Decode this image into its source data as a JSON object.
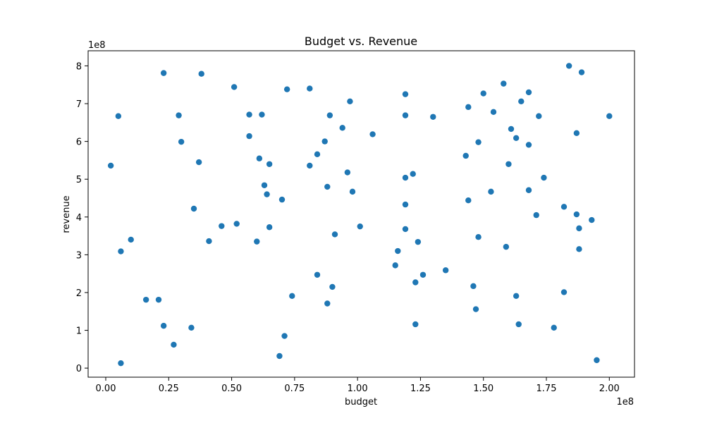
{
  "chart_data": {
    "type": "scatter",
    "title": "Budget vs. Revenue",
    "xlabel": "budget",
    "ylabel": "revenue",
    "x_offset_label": "1e8",
    "y_offset_label": "1e8",
    "xlim": [
      -0.07,
      2.1
    ],
    "ylim": [
      -0.24,
      8.4
    ],
    "x_ticks": [
      0,
      0.25,
      0.5,
      0.75,
      1.0,
      1.25,
      1.5,
      1.75,
      2.0
    ],
    "x_tick_labels": [
      "0.00",
      "0.25",
      "0.50",
      "0.75",
      "1.00",
      "1.25",
      "1.50",
      "1.75",
      "2.00"
    ],
    "y_ticks": [
      0,
      1,
      2,
      3,
      4,
      5,
      6,
      7,
      8
    ],
    "y_tick_labels": [
      "0",
      "1",
      "2",
      "3",
      "4",
      "5",
      "6",
      "7",
      "8"
    ],
    "grid": false,
    "point_color": "#1f77b4",
    "points": [
      [
        0.02,
        5.36
      ],
      [
        0.05,
        6.67
      ],
      [
        0.06,
        3.09
      ],
      [
        0.06,
        0.13
      ],
      [
        0.1,
        3.4
      ],
      [
        0.16,
        1.81
      ],
      [
        0.21,
        1.81
      ],
      [
        0.23,
        7.81
      ],
      [
        0.23,
        1.12
      ],
      [
        0.27,
        0.62
      ],
      [
        0.29,
        6.69
      ],
      [
        0.3,
        5.99
      ],
      [
        0.34,
        1.07
      ],
      [
        0.35,
        4.22
      ],
      [
        0.37,
        5.45
      ],
      [
        0.38,
        7.79
      ],
      [
        0.41,
        3.36
      ],
      [
        0.46,
        3.76
      ],
      [
        0.51,
        7.44
      ],
      [
        0.52,
        3.82
      ],
      [
        0.57,
        6.71
      ],
      [
        0.57,
        6.14
      ],
      [
        0.6,
        3.35
      ],
      [
        0.61,
        5.55
      ],
      [
        0.62,
        6.71
      ],
      [
        0.63,
        4.84
      ],
      [
        0.64,
        4.6
      ],
      [
        0.65,
        5.4
      ],
      [
        0.65,
        3.73
      ],
      [
        0.69,
        0.32
      ],
      [
        0.7,
        4.46
      ],
      [
        0.71,
        0.85
      ],
      [
        0.72,
        7.38
      ],
      [
        0.74,
        1.91
      ],
      [
        0.81,
        7.4
      ],
      [
        0.81,
        5.36
      ],
      [
        0.84,
        2.47
      ],
      [
        0.84,
        5.66
      ],
      [
        0.87,
        6.0
      ],
      [
        0.88,
        4.8
      ],
      [
        0.88,
        1.71
      ],
      [
        0.89,
        6.69
      ],
      [
        0.9,
        2.15
      ],
      [
        0.91,
        3.54
      ],
      [
        0.94,
        6.36
      ],
      [
        0.96,
        5.18
      ],
      [
        0.97,
        7.06
      ],
      [
        0.98,
        4.67
      ],
      [
        1.01,
        3.75
      ],
      [
        1.06,
        6.19
      ],
      [
        1.15,
        2.72
      ],
      [
        1.16,
        3.1
      ],
      [
        1.19,
        7.25
      ],
      [
        1.19,
        6.69
      ],
      [
        1.19,
        5.04
      ],
      [
        1.19,
        4.33
      ],
      [
        1.19,
        3.68
      ],
      [
        1.22,
        5.14
      ],
      [
        1.23,
        2.27
      ],
      [
        1.23,
        1.16
      ],
      [
        1.24,
        3.34
      ],
      [
        1.26,
        2.47
      ],
      [
        1.3,
        6.65
      ],
      [
        1.35,
        2.59
      ],
      [
        1.43,
        5.62
      ],
      [
        1.44,
        6.91
      ],
      [
        1.44,
        4.44
      ],
      [
        1.46,
        2.17
      ],
      [
        1.47,
        1.56
      ],
      [
        1.48,
        5.98
      ],
      [
        1.48,
        3.47
      ],
      [
        1.5,
        7.27
      ],
      [
        1.53,
        4.67
      ],
      [
        1.54,
        6.78
      ],
      [
        1.58,
        7.53
      ],
      [
        1.59,
        3.21
      ],
      [
        1.6,
        5.4
      ],
      [
        1.61,
        6.33
      ],
      [
        1.63,
        6.09
      ],
      [
        1.63,
        1.91
      ],
      [
        1.64,
        1.16
      ],
      [
        1.65,
        7.06
      ],
      [
        1.68,
        7.3
      ],
      [
        1.68,
        5.91
      ],
      [
        1.68,
        4.71
      ],
      [
        1.71,
        4.05
      ],
      [
        1.72,
        6.67
      ],
      [
        1.74,
        5.04
      ],
      [
        1.78,
        1.07
      ],
      [
        1.82,
        4.27
      ],
      [
        1.82,
        2.01
      ],
      [
        1.84,
        8.0
      ],
      [
        1.87,
        6.22
      ],
      [
        1.87,
        4.07
      ],
      [
        1.88,
        3.7
      ],
      [
        1.88,
        3.15
      ],
      [
        1.89,
        7.83
      ],
      [
        1.93,
        3.92
      ],
      [
        1.95,
        0.21
      ],
      [
        2.0,
        6.67
      ]
    ]
  }
}
